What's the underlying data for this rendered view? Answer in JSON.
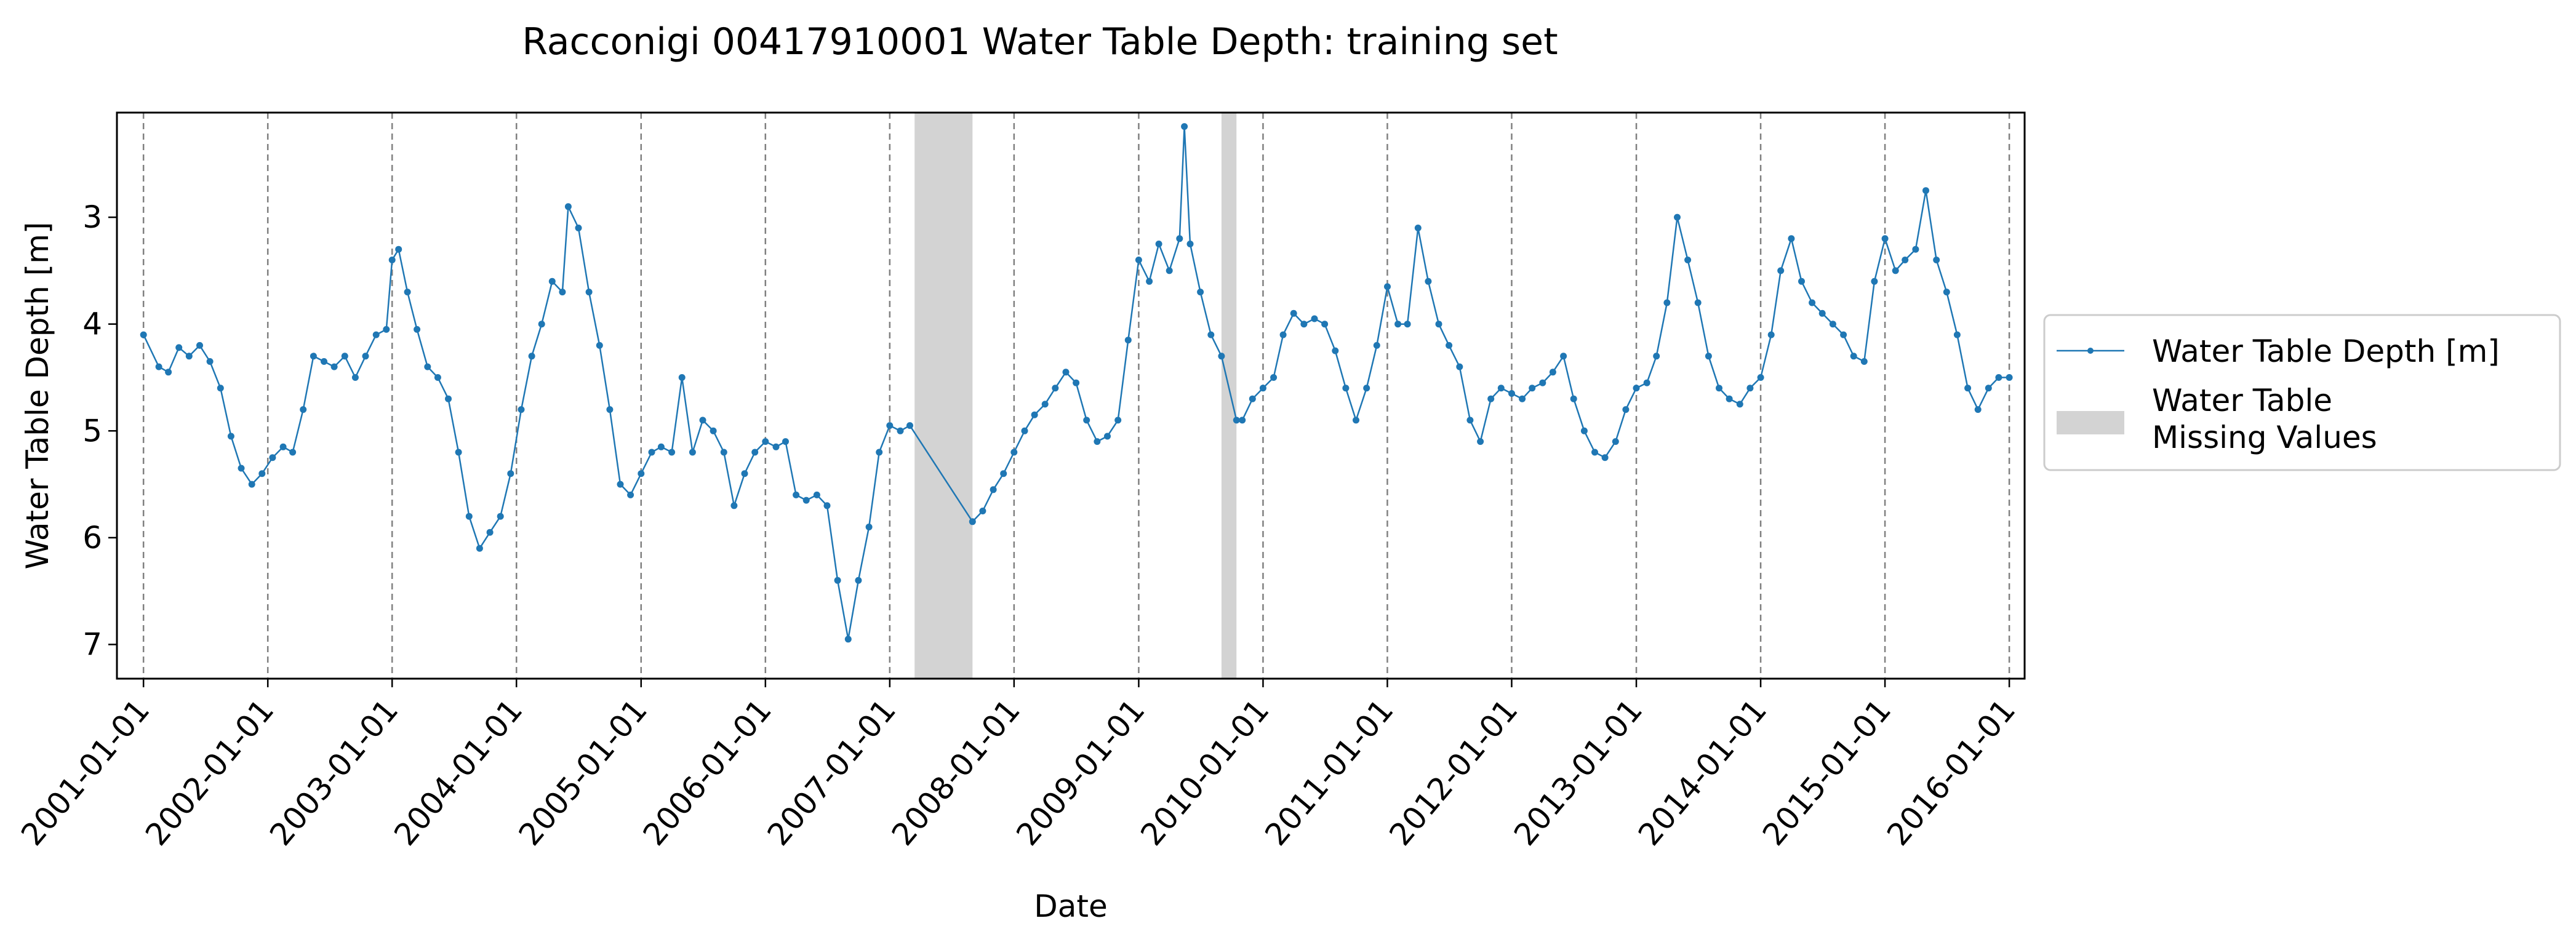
{
  "chart_data": {
    "type": "line",
    "title": "Racconigi 00417910001 Water Table Depth: training set",
    "xlabel": "Date",
    "ylabel": "Water Table Depth [m]",
    "xlim": [
      "2000-10-15",
      "2016-02-15"
    ],
    "ylim": [
      7.32,
      2.02
    ],
    "y_inverted": true,
    "grid": "vertical dashed lines at yearly ticks",
    "x_ticks": [
      "2001-01-01",
      "2002-01-01",
      "2003-01-01",
      "2004-01-01",
      "2005-01-01",
      "2006-01-01",
      "2007-01-01",
      "2008-01-01",
      "2009-01-01",
      "2010-01-01",
      "2011-01-01",
      "2012-01-01",
      "2013-01-01",
      "2014-01-01",
      "2015-01-01",
      "2016-01-01"
    ],
    "y_ticks": [
      3,
      4,
      5,
      6,
      7
    ],
    "legend": {
      "placement": "right outside",
      "entries": [
        "Water Table Depth [m]",
        "Water Table\nMissing Values"
      ]
    },
    "missing_periods": [
      {
        "start": "2007-03-15",
        "end": "2007-09-01"
      },
      {
        "start": "2009-09-01",
        "end": "2009-10-15"
      }
    ],
    "series": [
      {
        "name": "Water Table Depth [m]",
        "color": "#1f77b4",
        "points": [
          [
            "2001-01-01",
            4.1
          ],
          [
            "2001-02-15",
            4.4
          ],
          [
            "2001-03-15",
            4.45
          ],
          [
            "2001-04-15",
            4.22
          ],
          [
            "2001-05-15",
            4.3
          ],
          [
            "2001-06-15",
            4.2
          ],
          [
            "2001-07-15",
            4.35
          ],
          [
            "2001-08-15",
            4.6
          ],
          [
            "2001-09-15",
            5.05
          ],
          [
            "2001-10-15",
            5.35
          ],
          [
            "2001-11-15",
            5.5
          ],
          [
            "2001-12-15",
            5.4
          ],
          [
            "2002-01-15",
            5.25
          ],
          [
            "2002-02-15",
            5.15
          ],
          [
            "2002-03-15",
            5.2
          ],
          [
            "2002-04-15",
            4.8
          ],
          [
            "2002-05-15",
            4.3
          ],
          [
            "2002-06-15",
            4.35
          ],
          [
            "2002-07-15",
            4.4
          ],
          [
            "2002-08-15",
            4.3
          ],
          [
            "2002-09-15",
            4.5
          ],
          [
            "2002-10-15",
            4.3
          ],
          [
            "2002-11-15",
            4.1
          ],
          [
            "2002-12-15",
            4.05
          ],
          [
            "2003-01-01",
            3.4
          ],
          [
            "2003-01-20",
            3.3
          ],
          [
            "2003-02-15",
            3.7
          ],
          [
            "2003-03-15",
            4.05
          ],
          [
            "2003-04-15",
            4.4
          ],
          [
            "2003-05-15",
            4.5
          ],
          [
            "2003-06-15",
            4.7
          ],
          [
            "2003-07-15",
            5.2
          ],
          [
            "2003-08-15",
            5.8
          ],
          [
            "2003-09-15",
            6.1
          ],
          [
            "2003-10-15",
            5.95
          ],
          [
            "2003-11-15",
            5.8
          ],
          [
            "2003-12-15",
            5.4
          ],
          [
            "2004-01-15",
            4.8
          ],
          [
            "2004-02-15",
            4.3
          ],
          [
            "2004-03-15",
            4.0
          ],
          [
            "2004-04-15",
            3.6
          ],
          [
            "2004-05-15",
            3.7
          ],
          [
            "2004-06-01",
            2.9
          ],
          [
            "2004-07-01",
            3.1
          ],
          [
            "2004-08-01",
            3.7
          ],
          [
            "2004-09-01",
            4.2
          ],
          [
            "2004-10-01",
            4.8
          ],
          [
            "2004-11-01",
            5.5
          ],
          [
            "2004-12-01",
            5.6
          ],
          [
            "2005-01-01",
            5.4
          ],
          [
            "2005-02-01",
            5.2
          ],
          [
            "2005-03-01",
            5.15
          ],
          [
            "2005-04-01",
            5.2
          ],
          [
            "2005-05-01",
            4.5
          ],
          [
            "2005-06-01",
            5.2
          ],
          [
            "2005-07-01",
            4.9
          ],
          [
            "2005-08-01",
            5.0
          ],
          [
            "2005-09-01",
            5.2
          ],
          [
            "2005-10-01",
            5.7
          ],
          [
            "2005-11-01",
            5.4
          ],
          [
            "2005-12-01",
            5.2
          ],
          [
            "2006-01-01",
            5.1
          ],
          [
            "2006-02-01",
            5.15
          ],
          [
            "2006-03-01",
            5.1
          ],
          [
            "2006-04-01",
            5.6
          ],
          [
            "2006-05-01",
            5.65
          ],
          [
            "2006-06-01",
            5.6
          ],
          [
            "2006-07-01",
            5.7
          ],
          [
            "2006-08-01",
            6.4
          ],
          [
            "2006-09-01",
            6.95
          ],
          [
            "2006-10-01",
            6.4
          ],
          [
            "2006-11-01",
            5.9
          ],
          [
            "2006-12-01",
            5.2
          ],
          [
            "2007-01-01",
            4.95
          ],
          [
            "2007-02-01",
            5.0
          ],
          [
            "2007-03-01",
            4.95
          ],
          [
            "2007-09-01",
            5.85
          ],
          [
            "2007-10-01",
            5.75
          ],
          [
            "2007-11-01",
            5.55
          ],
          [
            "2007-12-01",
            5.4
          ],
          [
            "2008-01-01",
            5.2
          ],
          [
            "2008-02-01",
            5.0
          ],
          [
            "2008-03-01",
            4.85
          ],
          [
            "2008-04-01",
            4.75
          ],
          [
            "2008-05-01",
            4.6
          ],
          [
            "2008-06-01",
            4.45
          ],
          [
            "2008-07-01",
            4.55
          ],
          [
            "2008-08-01",
            4.9
          ],
          [
            "2008-09-01",
            5.1
          ],
          [
            "2008-10-01",
            5.05
          ],
          [
            "2008-11-01",
            4.9
          ],
          [
            "2008-12-01",
            4.15
          ],
          [
            "2009-01-01",
            3.4
          ],
          [
            "2009-02-01",
            3.6
          ],
          [
            "2009-03-01",
            3.25
          ],
          [
            "2009-04-01",
            3.5
          ],
          [
            "2009-05-01",
            3.2
          ],
          [
            "2009-05-15",
            2.15
          ],
          [
            "2009-06-01",
            3.25
          ],
          [
            "2009-07-01",
            3.7
          ],
          [
            "2009-08-01",
            4.1
          ],
          [
            "2009-09-01",
            4.3
          ],
          [
            "2009-10-15",
            4.9
          ],
          [
            "2009-11-01",
            4.9
          ],
          [
            "2009-12-01",
            4.7
          ],
          [
            "2010-01-01",
            4.6
          ],
          [
            "2010-02-01",
            4.5
          ],
          [
            "2010-03-01",
            4.1
          ],
          [
            "2010-04-01",
            3.9
          ],
          [
            "2010-05-01",
            4.0
          ],
          [
            "2010-06-01",
            3.95
          ],
          [
            "2010-07-01",
            4.0
          ],
          [
            "2010-08-01",
            4.25
          ],
          [
            "2010-09-01",
            4.6
          ],
          [
            "2010-10-01",
            4.9
          ],
          [
            "2010-11-01",
            4.6
          ],
          [
            "2010-12-01",
            4.2
          ],
          [
            "2011-01-01",
            3.65
          ],
          [
            "2011-02-01",
            4.0
          ],
          [
            "2011-03-01",
            4.0
          ],
          [
            "2011-04-01",
            3.1
          ],
          [
            "2011-05-01",
            3.6
          ],
          [
            "2011-06-01",
            4.0
          ],
          [
            "2011-07-01",
            4.2
          ],
          [
            "2011-08-01",
            4.4
          ],
          [
            "2011-09-01",
            4.9
          ],
          [
            "2011-10-01",
            5.1
          ],
          [
            "2011-11-01",
            4.7
          ],
          [
            "2011-12-01",
            4.6
          ],
          [
            "2012-01-01",
            4.65
          ],
          [
            "2012-02-01",
            4.7
          ],
          [
            "2012-03-01",
            4.6
          ],
          [
            "2012-04-01",
            4.55
          ],
          [
            "2012-05-01",
            4.45
          ],
          [
            "2012-06-01",
            4.3
          ],
          [
            "2012-07-01",
            4.7
          ],
          [
            "2012-08-01",
            5.0
          ],
          [
            "2012-09-01",
            5.2
          ],
          [
            "2012-10-01",
            5.25
          ],
          [
            "2012-11-01",
            5.1
          ],
          [
            "2012-12-01",
            4.8
          ],
          [
            "2013-01-01",
            4.6
          ],
          [
            "2013-02-01",
            4.55
          ],
          [
            "2013-03-01",
            4.3
          ],
          [
            "2013-04-01",
            3.8
          ],
          [
            "2013-05-01",
            3.0
          ],
          [
            "2013-06-01",
            3.4
          ],
          [
            "2013-07-01",
            3.8
          ],
          [
            "2013-08-01",
            4.3
          ],
          [
            "2013-09-01",
            4.6
          ],
          [
            "2013-10-01",
            4.7
          ],
          [
            "2013-11-01",
            4.75
          ],
          [
            "2013-12-01",
            4.6
          ],
          [
            "2014-01-01",
            4.5
          ],
          [
            "2014-02-01",
            4.1
          ],
          [
            "2014-03-01",
            3.5
          ],
          [
            "2014-04-01",
            3.2
          ],
          [
            "2014-05-01",
            3.6
          ],
          [
            "2014-06-01",
            3.8
          ],
          [
            "2014-07-01",
            3.9
          ],
          [
            "2014-08-01",
            4.0
          ],
          [
            "2014-09-01",
            4.1
          ],
          [
            "2014-10-01",
            4.3
          ],
          [
            "2014-11-01",
            4.35
          ],
          [
            "2014-12-01",
            3.6
          ],
          [
            "2015-01-01",
            3.2
          ],
          [
            "2015-02-01",
            3.5
          ],
          [
            "2015-03-01",
            3.4
          ],
          [
            "2015-04-01",
            3.3
          ],
          [
            "2015-05-01",
            2.75
          ],
          [
            "2015-06-01",
            3.4
          ],
          [
            "2015-07-01",
            3.7
          ],
          [
            "2015-08-01",
            4.1
          ],
          [
            "2015-09-01",
            4.6
          ],
          [
            "2015-10-01",
            4.8
          ],
          [
            "2015-11-01",
            4.6
          ],
          [
            "2015-12-01",
            4.5
          ],
          [
            "2016-01-01",
            4.5
          ]
        ]
      }
    ]
  }
}
